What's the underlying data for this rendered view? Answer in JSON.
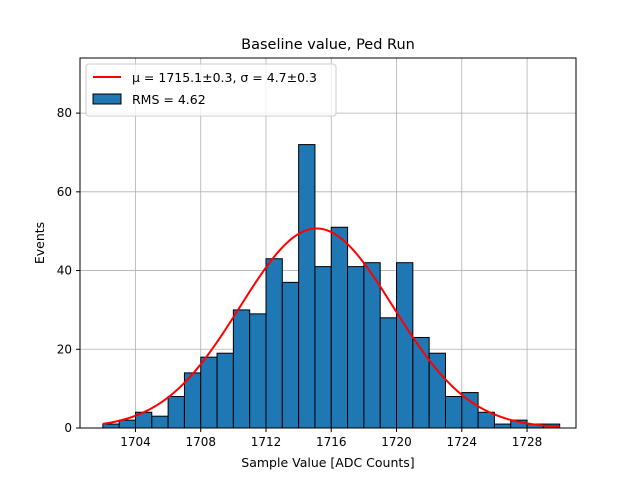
{
  "chart_data": {
    "type": "bar",
    "title": "Baseline value, Ped Run",
    "xlabel": "Sample Value [ADC Counts]",
    "ylabel": "Events",
    "xlim": [
      1700.6,
      1731.0
    ],
    "ylim": [
      0,
      94
    ],
    "xticks": [
      1704,
      1708,
      1712,
      1716,
      1720,
      1724,
      1728
    ],
    "yticks": [
      0,
      20,
      40,
      60,
      80
    ],
    "grid": true,
    "legend_position": "top-left",
    "bin_width": 1,
    "bin_edges_start": 1702,
    "bins": [
      {
        "x": 1702,
        "value": 1
      },
      {
        "x": 1703,
        "value": 2
      },
      {
        "x": 1704,
        "value": 4
      },
      {
        "x": 1705,
        "value": 3
      },
      {
        "x": 1706,
        "value": 8
      },
      {
        "x": 1707,
        "value": 14
      },
      {
        "x": 1708,
        "value": 18
      },
      {
        "x": 1709,
        "value": 19
      },
      {
        "x": 1710,
        "value": 30
      },
      {
        "x": 1711,
        "value": 29
      },
      {
        "x": 1712,
        "value": 43
      },
      {
        "x": 1713,
        "value": 37
      },
      {
        "x": 1714,
        "value": 72
      },
      {
        "x": 1715,
        "value": 41
      },
      {
        "x": 1716,
        "value": 51
      },
      {
        "x": 1717,
        "value": 41
      },
      {
        "x": 1718,
        "value": 42
      },
      {
        "x": 1719,
        "value": 28
      },
      {
        "x": 1720,
        "value": 42
      },
      {
        "x": 1721,
        "value": 23
      },
      {
        "x": 1722,
        "value": 19
      },
      {
        "x": 1723,
        "value": 8
      },
      {
        "x": 1724,
        "value": 9
      },
      {
        "x": 1725,
        "value": 4
      },
      {
        "x": 1726,
        "value": 1
      },
      {
        "x": 1727,
        "value": 2
      },
      {
        "x": 1728,
        "value": 1
      },
      {
        "x": 1729,
        "value": 1
      }
    ],
    "fit": {
      "type": "gaussian",
      "mu": 1715.1,
      "sigma": 4.7,
      "amplitude": 50.7,
      "x_range": [
        1702,
        1730
      ],
      "color": "#ff0000"
    },
    "legend": [
      {
        "label": "μ = 1715.1±0.3, σ = 4.7±0.3",
        "kind": "line",
        "color": "#ff0000"
      },
      {
        "label": "RMS = 4.62",
        "kind": "patch",
        "color": "#1f77b4"
      }
    ],
    "colors": {
      "bar_fill": "#1f77b4",
      "bar_edge": "#000000",
      "fit_line": "#ff0000",
      "grid": "#b0b0b0"
    }
  }
}
